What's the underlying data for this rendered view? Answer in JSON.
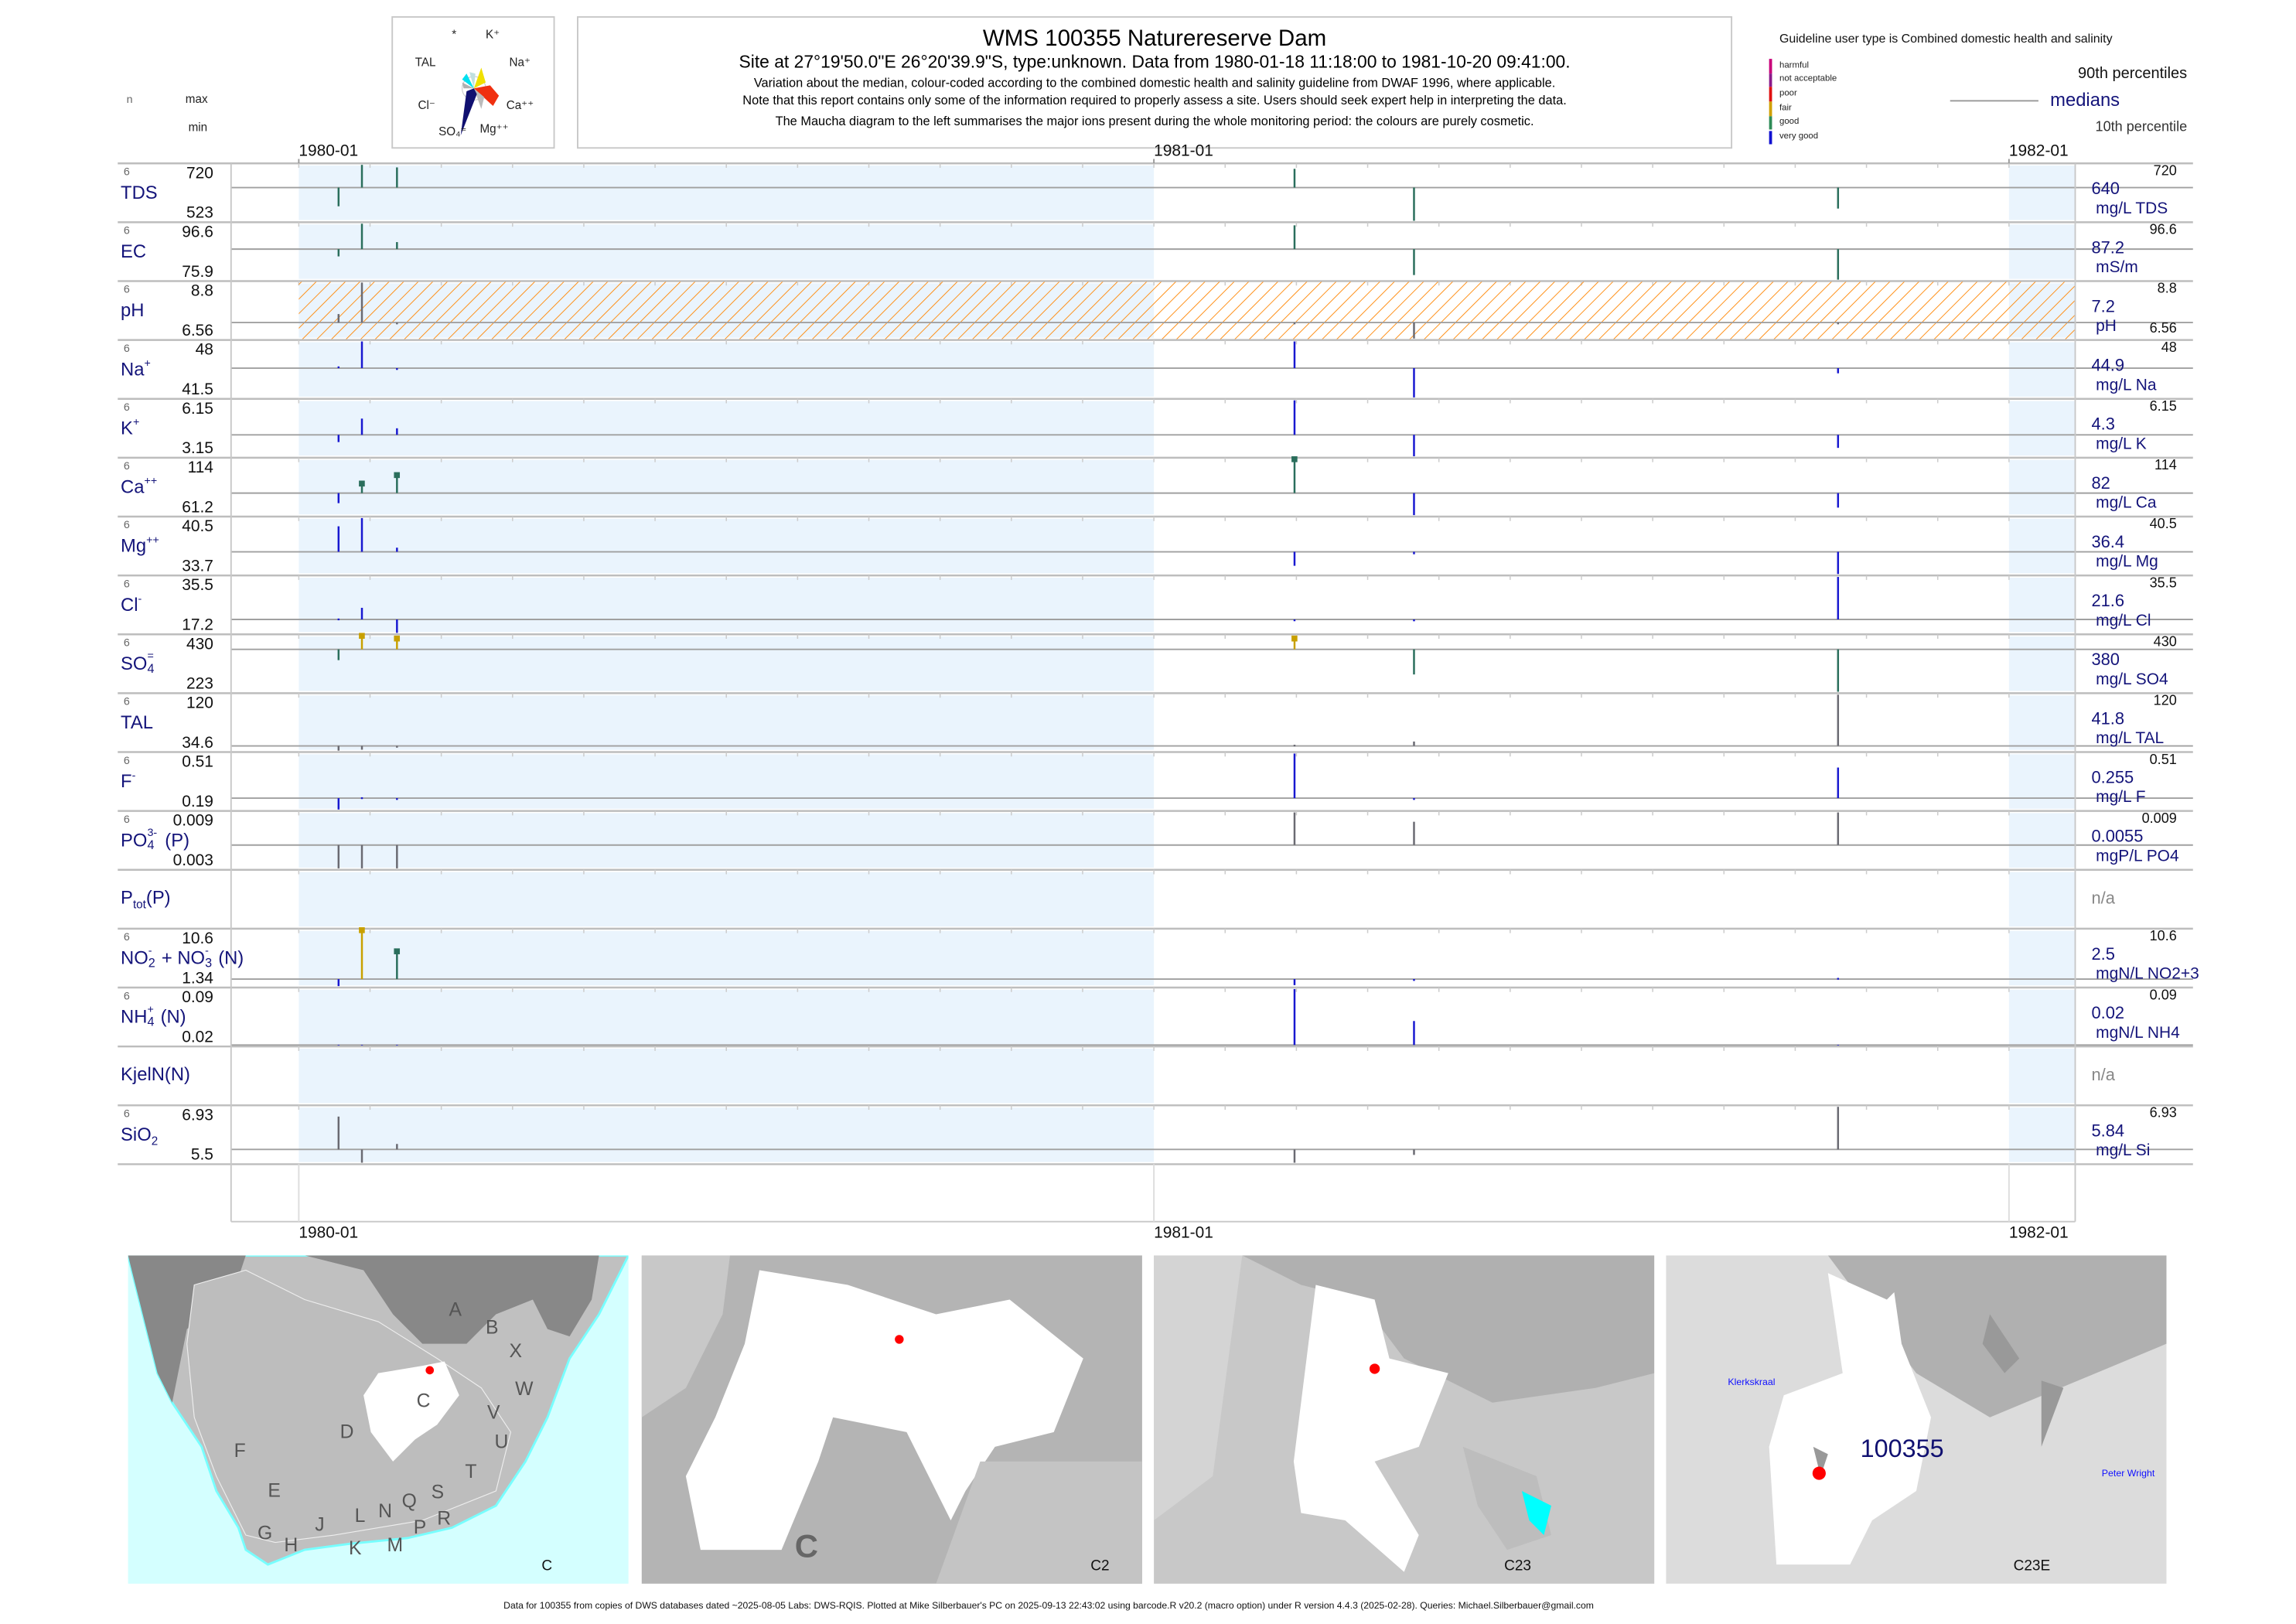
{
  "header": {
    "maucha_labels": [
      "*",
      "K⁺",
      "TAL",
      "Na⁺",
      "Cl⁻",
      "Ca⁺⁺",
      "SO₄⁼",
      "Mg⁺⁺"
    ],
    "title": "WMS 100355  Naturereserve Dam",
    "subtitle": "Site at 27°19'50.0\"E 26°20'39.9\"S, type:unknown.  Data from 1980-01-18 11:18:00 to 1981-10-20 09:41:00.",
    "lines": [
      "Variation about the median,  colour-coded according to the combined domestic health and salinity guideline from DWAF 1996, where applicable.",
      "Note that this report contains only some of the information required to properly assess a site. Users should seek expert help in interpreting the data.",
      "The Maucha diagram to the left summarises the major ions present during the whole monitoring period: the colours are purely cosmetic."
    ],
    "col_n": "n",
    "col_max": "max",
    "col_min": "min"
  },
  "legend": {
    "guideline": "Guideline user type is Combined domestic health and salinity",
    "classes": [
      {
        "label": "harmful",
        "color": "#c8007a"
      },
      {
        "label": "not acceptable",
        "color": "#8a1a8a"
      },
      {
        "label": "poor",
        "color": "#e01010"
      },
      {
        "label": "fair",
        "color": "#d0a000"
      },
      {
        "label": "good",
        "color": "#2e8b57"
      },
      {
        "label": "very good",
        "color": "#1010d0"
      }
    ],
    "p90": "90th percentiles",
    "medians": "medians",
    "p10": "10th percentile"
  },
  "chart_data": {
    "type": "table",
    "title": "WMS 100355  Naturereserve Dam",
    "x_ticks": [
      "1980-01",
      "1981-01",
      "1982-01"
    ],
    "xlim": [
      "1980-01-01",
      "1982-01-01"
    ],
    "sample_dates": [
      "1980-01-18",
      "1980-01-28",
      "1980-02-12",
      "1981-03-02",
      "1981-04-22",
      "1981-10-20"
    ],
    "rows": [
      {
        "label": [
          {
            "t": "TDS"
          }
        ],
        "n": "6",
        "max": "720",
        "min": "523",
        "median": "640",
        "unit": "mg/L TDS",
        "vmax": 720,
        "vmin": 523,
        "vmed": 640,
        "values": [
          574,
          720,
          711,
          706,
          523,
          566
        ],
        "status": [
          "g",
          "g",
          "g",
          "g",
          "g",
          "g"
        ],
        "markers": []
      },
      {
        "label": [
          {
            "t": "EC"
          }
        ],
        "n": "6",
        "max": "96.6",
        "min": "75.9",
        "median": "87.2",
        "unit": "mS/m",
        "vmax": 96.6,
        "vmin": 75.9,
        "vmed": 87.2,
        "values": [
          84.5,
          96.6,
          89.8,
          96.0,
          77.6,
          75.9
        ],
        "status": [
          "g",
          "g",
          "g",
          "g",
          "g",
          "g"
        ],
        "markers": []
      },
      {
        "label": [
          {
            "t": "pH"
          }
        ],
        "n": "6",
        "max": "8.8",
        "min": "6.56",
        "median": "7.2",
        "unit": "pH",
        "right_min": "6.56",
        "hatched": true,
        "vmax": 8.8,
        "vmin": 6.56,
        "vmed": 7.2,
        "values": [
          7.54,
          8.8,
          7.2,
          7.2,
          6.56,
          7.2
        ],
        "status": [
          "n",
          "n",
          "n",
          "n",
          "n",
          "n"
        ],
        "markers": []
      },
      {
        "label": [
          {
            "t": "Na"
          },
          {
            "sup": "+"
          }
        ],
        "n": "6",
        "max": "48",
        "min": "41.5",
        "median": "44.9",
        "unit": "mg/L Na",
        "vmax": 48,
        "vmin": 41.5,
        "vmed": 44.9,
        "values": [
          45.1,
          48,
          44.75,
          48,
          41.5,
          44.3
        ],
        "status": [
          "vg",
          "vg",
          "vg",
          "vg",
          "vg",
          "vg"
        ],
        "markers": []
      },
      {
        "label": [
          {
            "t": "K"
          },
          {
            "sup": "+"
          }
        ],
        "n": "6",
        "max": "6.15",
        "min": "3.15",
        "median": "4.3",
        "unit": "mg/L K",
        "vmax": 6.15,
        "vmin": 3.15,
        "vmed": 4.3,
        "values": [
          3.91,
          5.17,
          4.65,
          6.15,
          3.15,
          3.6
        ],
        "status": [
          "vg",
          "vg",
          "vg",
          "vg",
          "vg",
          "vg"
        ],
        "markers": []
      },
      {
        "label": [
          {
            "t": "Ca"
          },
          {
            "sup": "++"
          }
        ],
        "n": "6",
        "max": "114",
        "min": "61.2",
        "median": "82",
        "unit": "mg/L Ca",
        "vmax": 114,
        "vmin": 61.2,
        "vmed": 82,
        "values": [
          72.5,
          91,
          99,
          114,
          61.2,
          68.3
        ],
        "status": [
          "vg",
          "g",
          "g",
          "g",
          "vg",
          "vg"
        ],
        "markers": [
          1,
          2,
          3
        ]
      },
      {
        "label": [
          {
            "t": "Mg"
          },
          {
            "sup": "++"
          }
        ],
        "n": "6",
        "max": "40.5",
        "min": "33.7",
        "median": "36.4",
        "unit": "mg/L Mg",
        "vmax": 40.5,
        "vmin": 33.7,
        "vmed": 36.4,
        "values": [
          39.5,
          40.5,
          36.9,
          34.7,
          36.1,
          33.7
        ],
        "status": [
          "vg",
          "vg",
          "vg",
          "vg",
          "vg",
          "vg"
        ],
        "markers": []
      },
      {
        "label": [
          {
            "t": "Cl"
          },
          {
            "sup": "-"
          }
        ],
        "n": "6",
        "max": "35.5",
        "min": "17.2",
        "median": "21.6",
        "unit": "mg/L Cl",
        "vmax": 35.5,
        "vmin": 17.2,
        "vmed": 21.6,
        "values": [
          21.9,
          25.4,
          17.2,
          21.3,
          21.0,
          35.5
        ],
        "status": [
          "vg",
          "vg",
          "vg",
          "vg",
          "vg",
          "vg"
        ],
        "markers": []
      },
      {
        "label": [
          {
            "t": "SO"
          },
          {
            "sub": "4",
            "sup": "="
          }
        ],
        "n": "6",
        "max": "430",
        "min": "223",
        "median": "380",
        "unit": "mg/L SO4",
        "vmax": 430,
        "vmin": 223,
        "vmed": 380,
        "values": [
          340,
          430,
          420,
          420,
          287,
          223
        ],
        "status": [
          "g",
          "f",
          "f",
          "f",
          "g",
          "g"
        ],
        "markers": [
          1,
          2,
          3
        ]
      },
      {
        "label": [
          {
            "t": "TAL"
          }
        ],
        "n": "6",
        "max": "120",
        "min": "34.6",
        "median": "41.8",
        "unit": "mg/L TAL",
        "vmax": 120,
        "vmin": 34.6,
        "vmed": 41.8,
        "values": [
          34.6,
          36,
          40,
          43.6,
          48.5,
          120
        ],
        "status": [
          "n",
          "n",
          "n",
          "n",
          "n",
          "n"
        ],
        "markers": []
      },
      {
        "label": [
          {
            "t": "F"
          },
          {
            "sup": "-"
          }
        ],
        "n": "6",
        "max": "0.51",
        "min": "0.19",
        "median": "0.255",
        "unit": "mg/L F",
        "vmax": 0.51,
        "vmin": 0.19,
        "vmed": 0.255,
        "values": [
          0.19,
          0.26,
          0.25,
          0.51,
          0.25,
          0.43
        ],
        "status": [
          "vg",
          "vg",
          "vg",
          "vg",
          "vg",
          "vg"
        ],
        "markers": []
      },
      {
        "label": [
          {
            "t": "PO"
          },
          {
            "sub": "4",
            "sup": "3-"
          },
          {
            "t": "(P)"
          }
        ],
        "n": "6",
        "max": "0.009",
        "min": "0.003",
        "median": "0.0055",
        "unit": "mgP/L PO4",
        "vmax": 0.009,
        "vmin": 0.003,
        "vmed": 0.0055,
        "values": [
          0.003,
          0.003,
          0.003,
          0.009,
          0.008,
          0.009
        ],
        "status": [
          "n",
          "n",
          "n",
          "n",
          "n",
          "n"
        ],
        "markers": []
      },
      {
        "label": [
          {
            "t": "P"
          },
          {
            "sub": "tot"
          },
          {
            "t": "(P)"
          }
        ],
        "n": null,
        "median": "n/a",
        "values": []
      },
      {
        "label": [
          {
            "t": "NO"
          },
          {
            "sub": "2",
            "sup": "-"
          },
          {
            "t": "+ NO"
          },
          {
            "sub": "3",
            "sup": "-"
          },
          {
            "t": "(N)"
          }
        ],
        "n": "6",
        "max": "10.6",
        "min": "1.34",
        "median": "2.5",
        "unit": "mgN/L NO2+3",
        "vmax": 10.6,
        "vmin": 1.34,
        "vmed": 2.5,
        "values": [
          1.34,
          10.6,
          7.1,
          1.5,
          2.3,
          2.7
        ],
        "status": [
          "vg",
          "f",
          "g",
          "vg",
          "vg",
          "vg"
        ],
        "markers": [
          1,
          2
        ]
      },
      {
        "label": [
          {
            "t": "NH"
          },
          {
            "sub": "4",
            "sup": "+"
          },
          {
            "t": "(N)"
          }
        ],
        "n": "6",
        "max": "0.09",
        "min": "0.02",
        "median": "0.02",
        "unit": "mgN/L NH4",
        "vmax": 0.09,
        "vmin": 0.02,
        "vmed": 0.02,
        "values": [
          0.02,
          0.02,
          0.02,
          0.09,
          0.05,
          0.02
        ],
        "status": [
          "vg",
          "vg",
          "vg",
          "vg",
          "vg",
          "vg"
        ],
        "markers": []
      },
      {
        "label": [
          {
            "t": "KjelN(N)"
          }
        ],
        "n": null,
        "median": "n/a",
        "values": []
      },
      {
        "label": [
          {
            "t": "SiO"
          },
          {
            "sub": "2"
          }
        ],
        "n": "6",
        "max": "6.93",
        "min": "5.5",
        "median": "5.84",
        "unit": "mg/L Si",
        "vmax": 6.93,
        "vmin": 5.5,
        "vmed": 5.84,
        "values": [
          6.68,
          5.5,
          5.98,
          5.5,
          5.7,
          6.93
        ],
        "status": [
          "n",
          "n",
          "n",
          "n",
          "n",
          "n"
        ],
        "markers": []
      }
    ]
  },
  "maps": [
    {
      "caption": "C",
      "region_labels": [
        "A",
        "B",
        "X",
        "W",
        "C",
        "V",
        "D",
        "U",
        "F",
        "T",
        "E",
        "S",
        "Q",
        "N",
        "L",
        "R",
        "J",
        "P",
        "G",
        "M",
        "H",
        "K"
      ]
    },
    {
      "caption": "C2",
      "region_label": "C"
    },
    {
      "caption": "C23"
    },
    {
      "caption": "C23E",
      "site_label": "100355",
      "places": [
        "Klerkskraal",
        "Peter Wright"
      ]
    }
  ],
  "footer": "Data for 100355 from copies of DWS databases dated ~2025-08-05 Labs: DWS-RQIS. Plotted at Mike Silberbauer's PC on 2025-09-13 22:43:02 using barcode.R v20.2 (macro option) under R version 4.4.3 (2025-02-28). Queries: Michael.Silberbauer@gmail.com"
}
